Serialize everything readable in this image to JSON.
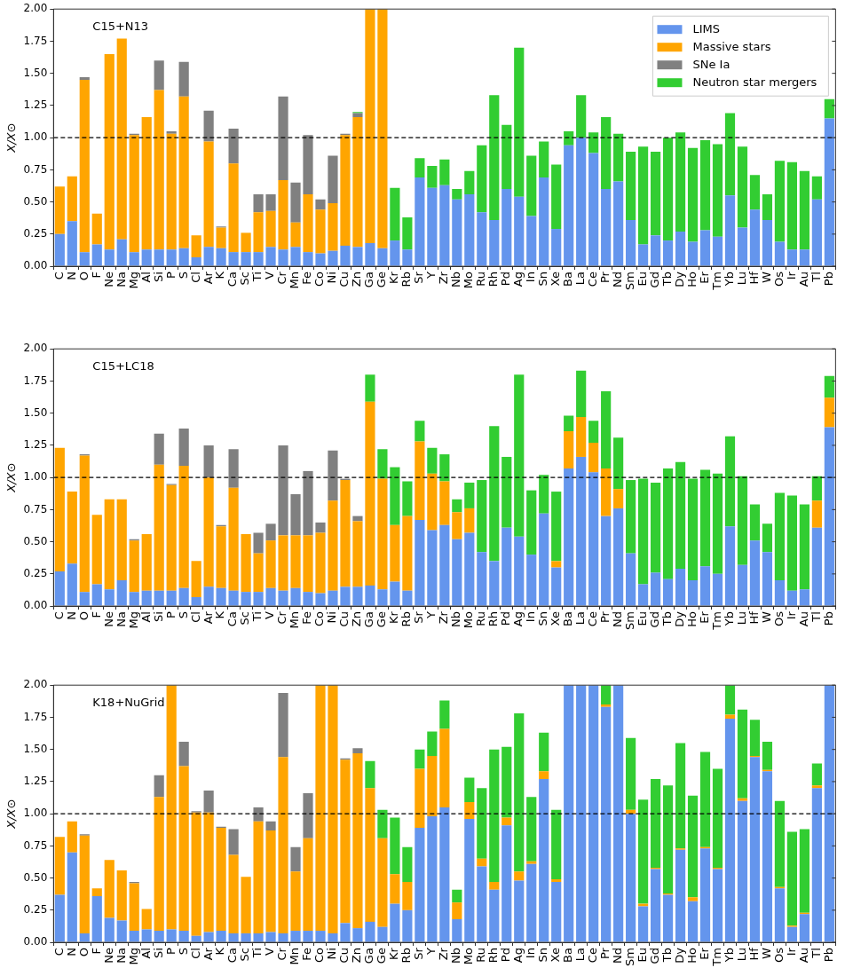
{
  "chart_data": [
    {
      "type": "bar",
      "stacked": true,
      "title": "C15+N13",
      "ylabel": "X/X⊙",
      "legend": "top right",
      "grid": false,
      "categories": [
        "C",
        "N",
        "O",
        "F",
        "Ne",
        "Na",
        "Mg",
        "Al",
        "Si",
        "P",
        "S",
        "Cl",
        "Ar",
        "K",
        "Ca",
        "Sc",
        "Ti",
        "V",
        "Cr",
        "Mn",
        "Fe",
        "Co",
        "Ni",
        "Cu",
        "Zn",
        "Ga",
        "Ge",
        "Kr",
        "Rb",
        "Sr",
        "Y",
        "Zr",
        "Nb",
        "Mo",
        "Ru",
        "Rh",
        "Pd",
        "Ag",
        "In",
        "Sn",
        "Xe",
        "Ba",
        "La",
        "Ce",
        "Pr",
        "Nd",
        "Sm",
        "Eu",
        "Gd",
        "Tb",
        "Dy",
        "Ho",
        "Er",
        "Tm",
        "Yb",
        "Lu",
        "Hf",
        "W",
        "Os",
        "Ir",
        "Au",
        "Tl",
        "Pb"
      ],
      "ylim": [
        0,
        2
      ],
      "yticks": [
        {
          "value": 0,
          "label": "0.00"
        },
        {
          "value": 0.25,
          "label": "0.25"
        },
        {
          "value": 0.5,
          "label": "0.50"
        },
        {
          "value": 0.75,
          "label": "0.75"
        },
        {
          "value": 1,
          "label": "1.00"
        },
        {
          "value": 1.25,
          "label": "1.25"
        },
        {
          "value": 1.5,
          "label": "1.50"
        },
        {
          "value": 1.75,
          "label": "1.75"
        },
        {
          "value": 2,
          "label": "2.00"
        }
      ],
      "ref_lines": [
        {
          "axis": "y",
          "value": 1,
          "line_style": "dashed",
          "color": "#000000"
        }
      ],
      "series": [
        {
          "name": "LIMS",
          "color": "#6495ed",
          "values": [
            0.25,
            0.35,
            0.11,
            0.17,
            0.13,
            0.21,
            0.11,
            0.13,
            0.13,
            0.13,
            0.14,
            0.07,
            0.15,
            0.14,
            0.11,
            0.11,
            0.11,
            0.15,
            0.13,
            0.15,
            0.11,
            0.1,
            0.12,
            0.16,
            0.15,
            0.18,
            0.14,
            0.2,
            0.13,
            0.69,
            0.61,
            0.63,
            0.52,
            0.56,
            0.42,
            0.36,
            0.6,
            0.54,
            0.39,
            0.69,
            0.29,
            0.94,
            1.0,
            0.88,
            0.6,
            0.66,
            0.36,
            0.17,
            0.24,
            0.2,
            0.27,
            0.19,
            0.28,
            0.23,
            0.55,
            0.3,
            0.44,
            0.36,
            0.19,
            0.13,
            0.13,
            0.52,
            1.15
          ]
        },
        {
          "name": "Massive stars",
          "color": "#ffa500",
          "values": [
            0.37,
            0.35,
            1.34,
            0.24,
            1.52,
            1.56,
            0.91,
            1.03,
            1.24,
            0.9,
            1.18,
            0.17,
            0.82,
            0.16,
            0.69,
            0.15,
            0.31,
            0.28,
            0.54,
            0.19,
            0.45,
            0.34,
            0.37,
            0.86,
            1.01,
            1.82,
            1.86,
            0,
            0,
            0,
            0,
            0,
            0,
            0,
            0,
            0,
            0,
            0,
            0,
            0,
            0,
            0,
            0,
            0,
            0,
            0,
            0,
            0,
            0,
            0,
            0,
            0,
            0,
            0,
            0,
            0,
            0,
            0,
            0,
            0,
            0,
            0,
            0
          ]
        },
        {
          "name": "SNe Ia",
          "color": "#808080",
          "values": [
            0,
            0,
            0.02,
            0,
            0,
            0,
            0.01,
            0,
            0.23,
            0.02,
            0.27,
            0,
            0.24,
            0.01,
            0.27,
            0,
            0.14,
            0.13,
            0.65,
            0.31,
            0.46,
            0.08,
            0.37,
            0.01,
            0.03,
            0,
            0,
            0,
            0,
            0,
            0,
            0,
            0,
            0,
            0,
            0,
            0,
            0,
            0,
            0,
            0,
            0,
            0,
            0,
            0,
            0,
            0,
            0,
            0,
            0,
            0,
            0,
            0,
            0,
            0,
            0,
            0,
            0,
            0,
            0,
            0,
            0,
            0
          ]
        },
        {
          "name": "Neutron star mergers",
          "color": "#32cd32",
          "values": [
            0,
            0,
            0,
            0,
            0,
            0,
            0,
            0,
            0,
            0,
            0,
            0,
            0,
            0,
            0,
            0,
            0,
            0,
            0,
            0,
            0,
            0,
            0,
            0,
            0.01,
            0,
            0,
            0.41,
            0.25,
            0.15,
            0.17,
            0.2,
            0.08,
            0.18,
            0.52,
            0.97,
            0.5,
            1.16,
            0.47,
            0.28,
            0.5,
            0.11,
            0.33,
            0.16,
            0.56,
            0.37,
            0.53,
            0.76,
            0.65,
            0.8,
            0.77,
            0.73,
            0.7,
            0.72,
            0.64,
            0.63,
            0.27,
            0.2,
            0.63,
            0.68,
            0.61,
            0.18,
            0.15
          ]
        }
      ]
    },
    {
      "type": "bar",
      "stacked": true,
      "title": "C15+LC18",
      "ylabel": "X/X⊙",
      "grid": false,
      "categories": [
        "C",
        "N",
        "O",
        "F",
        "Ne",
        "Na",
        "Mg",
        "Al",
        "Si",
        "P",
        "S",
        "Cl",
        "Ar",
        "K",
        "Ca",
        "Sc",
        "Ti",
        "V",
        "Cr",
        "Mn",
        "Fe",
        "Co",
        "Ni",
        "Cu",
        "Zn",
        "Ga",
        "Ge",
        "Kr",
        "Rb",
        "Sr",
        "Y",
        "Zr",
        "Nb",
        "Mo",
        "Ru",
        "Rh",
        "Pd",
        "Ag",
        "In",
        "Sn",
        "Xe",
        "Ba",
        "La",
        "Ce",
        "Pr",
        "Nd",
        "Sm",
        "Eu",
        "Gd",
        "Tb",
        "Dy",
        "Ho",
        "Er",
        "Tm",
        "Yb",
        "Lu",
        "Hf",
        "W",
        "Os",
        "Ir",
        "Au",
        "Tl",
        "Pb"
      ],
      "ylim": [
        0,
        2
      ],
      "yticks": [
        {
          "value": 0,
          "label": "0.00"
        },
        {
          "value": 0.25,
          "label": "0.25"
        },
        {
          "value": 0.5,
          "label": "0.50"
        },
        {
          "value": 0.75,
          "label": "0.75"
        },
        {
          "value": 1,
          "label": "1.00"
        },
        {
          "value": 1.25,
          "label": "1.25"
        },
        {
          "value": 1.5,
          "label": "1.50"
        },
        {
          "value": 1.75,
          "label": "1.75"
        },
        {
          "value": 2,
          "label": "2.00"
        }
      ],
      "ref_lines": [
        {
          "axis": "y",
          "value": 1,
          "line_style": "dashed",
          "color": "#000000"
        }
      ],
      "series": [
        {
          "color": "#6495ed",
          "values": [
            0.27,
            0.33,
            0.11,
            0.17,
            0.13,
            0.2,
            0.11,
            0.12,
            0.12,
            0.12,
            0.14,
            0.07,
            0.15,
            0.14,
            0.12,
            0.11,
            0.11,
            0.14,
            0.12,
            0.14,
            0.11,
            0.1,
            0.12,
            0.15,
            0.15,
            0.16,
            0.13,
            0.19,
            0.12,
            0.67,
            0.59,
            0.63,
            0.52,
            0.57,
            0.42,
            0.35,
            0.61,
            0.54,
            0.4,
            0.72,
            0.3,
            1.07,
            1.16,
            1.04,
            0.7,
            0.76,
            0.41,
            0.17,
            0.26,
            0.21,
            0.29,
            0.2,
            0.31,
            0.25,
            0.62,
            0.32,
            0.51,
            0.42,
            0.2,
            0.12,
            0.13,
            0.61,
            1.39
          ]
        },
        {
          "color": "#ffa500",
          "values": [
            0.96,
            0.56,
            1.06,
            0.54,
            0.7,
            0.63,
            0.4,
            0.44,
            0.98,
            0.82,
            0.95,
            0.28,
            0.85,
            0.48,
            0.8,
            0.45,
            0.3,
            0.37,
            0.43,
            0.41,
            0.44,
            0.47,
            0.7,
            0.83,
            0.51,
            1.43,
            0.86,
            0.44,
            0.58,
            0.61,
            0.44,
            0.34,
            0.21,
            0.19,
            0,
            0,
            0,
            0,
            0,
            0,
            0.05,
            0.29,
            0.31,
            0.23,
            0.37,
            0.15,
            0,
            0,
            0,
            0,
            0,
            0,
            0,
            0,
            0,
            0,
            0,
            0,
            0,
            0,
            0,
            0.21,
            0.23
          ]
        },
        {
          "color": "#808080",
          "values": [
            0,
            0,
            0.01,
            0,
            0,
            0,
            0.01,
            0,
            0.24,
            0.01,
            0.29,
            0,
            0.25,
            0.01,
            0.3,
            0,
            0.16,
            0.13,
            0.7,
            0.32,
            0.5,
            0.08,
            0.39,
            0.01,
            0.04,
            0,
            0,
            0,
            0,
            0,
            0,
            0,
            0,
            0,
            0,
            0,
            0,
            0,
            0,
            0,
            0,
            0,
            0,
            0,
            0,
            0,
            0,
            0,
            0,
            0,
            0,
            0,
            0,
            0,
            0,
            0,
            0,
            0,
            0,
            0,
            0,
            0,
            0
          ]
        },
        {
          "color": "#32cd32",
          "values": [
            0,
            0,
            0,
            0,
            0,
            0,
            0,
            0,
            0,
            0,
            0,
            0,
            0,
            0,
            0,
            0,
            0,
            0,
            0,
            0,
            0,
            0,
            0,
            0,
            0,
            0.21,
            0.23,
            0.45,
            0.27,
            0.16,
            0.2,
            0.21,
            0.1,
            0.2,
            0.56,
            1.05,
            0.55,
            1.26,
            0.5,
            0.3,
            0.54,
            0.12,
            0.36,
            0.17,
            0.6,
            0.4,
            0.57,
            0.82,
            0.7,
            0.86,
            0.83,
            0.79,
            0.75,
            0.78,
            0.7,
            0.69,
            0.28,
            0.22,
            0.68,
            0.74,
            0.66,
            0.19,
            0.17
          ]
        }
      ]
    },
    {
      "type": "bar",
      "stacked": true,
      "title": "K18+NuGrid",
      "ylabel": "X/X⊙",
      "grid": false,
      "categories": [
        "C",
        "N",
        "O",
        "F",
        "Ne",
        "Na",
        "Mg",
        "Al",
        "Si",
        "P",
        "S",
        "Cl",
        "Ar",
        "K",
        "Ca",
        "Sc",
        "Ti",
        "V",
        "Cr",
        "Mn",
        "Fe",
        "Co",
        "Ni",
        "Cu",
        "Zn",
        "Ga",
        "Ge",
        "Kr",
        "Rb",
        "Sr",
        "Y",
        "Zr",
        "Nb",
        "Mo",
        "Ru",
        "Rh",
        "Pd",
        "Ag",
        "In",
        "Sn",
        "Xe",
        "Ba",
        "La",
        "Ce",
        "Pr",
        "Nd",
        "Sm",
        "Eu",
        "Gd",
        "Tb",
        "Dy",
        "Ho",
        "Er",
        "Tm",
        "Yb",
        "Lu",
        "Hf",
        "W",
        "Os",
        "Ir",
        "Au",
        "Tl",
        "Pb"
      ],
      "ylim": [
        0,
        2
      ],
      "yticks": [
        {
          "value": 0,
          "label": "0.00"
        },
        {
          "value": 0.25,
          "label": "0.25"
        },
        {
          "value": 0.5,
          "label": "0.50"
        },
        {
          "value": 0.75,
          "label": "0.75"
        },
        {
          "value": 1,
          "label": "1.00"
        },
        {
          "value": 1.25,
          "label": "1.25"
        },
        {
          "value": 1.5,
          "label": "1.50"
        },
        {
          "value": 1.75,
          "label": "1.75"
        },
        {
          "value": 2,
          "label": "2.00"
        }
      ],
      "ref_lines": [
        {
          "axis": "y",
          "value": 1,
          "line_style": "dashed",
          "color": "#000000"
        }
      ],
      "series": [
        {
          "color": "#6495ed",
          "values": [
            0.37,
            0.7,
            0.07,
            0.36,
            0.19,
            0.17,
            0.09,
            0.1,
            0.09,
            0.1,
            0.09,
            0.05,
            0.08,
            0.09,
            0.07,
            0.07,
            0.07,
            0.08,
            0.07,
            0.09,
            0.09,
            0.09,
            0.07,
            0.15,
            0.11,
            0.16,
            0.12,
            0.3,
            0.25,
            0.89,
            0.98,
            1.05,
            0.18,
            0.96,
            0.59,
            0.41,
            0.91,
            0.48,
            0.61,
            1.27,
            0.47,
            2,
            2,
            2,
            1.83,
            2,
            1.0,
            0.28,
            0.57,
            0.37,
            0.72,
            0.32,
            0.73,
            0.57,
            1.74,
            1.1,
            1.44,
            1.33,
            0.42,
            0.12,
            0.22,
            1.2,
            2
          ]
        },
        {
          "color": "#ffa500",
          "values": [
            0.45,
            0.24,
            0.76,
            0.06,
            0.45,
            0.39,
            0.37,
            0.16,
            1.04,
            1.9,
            1.28,
            0.96,
            0.93,
            0.8,
            0.61,
            0.44,
            0.87,
            0.79,
            1.37,
            0.46,
            0.72,
            1.91,
            1.93,
            1.27,
            1.36,
            1.04,
            0.69,
            0.23,
            0.22,
            0.46,
            0.47,
            0.61,
            0.13,
            0.13,
            0.06,
            0.06,
            0.06,
            0.07,
            0.02,
            0.06,
            0.02,
            0,
            0,
            0,
            0.02,
            0,
            0.03,
            0.02,
            0.01,
            0.01,
            0.01,
            0.03,
            0.01,
            0.01,
            0.03,
            0.02,
            0.01,
            0.01,
            0.01,
            0.01,
            0.01,
            0.02,
            0
          ]
        },
        {
          "color": "#808080",
          "values": [
            0,
            0,
            0.01,
            0,
            0,
            0,
            0.01,
            0,
            0.17,
            0,
            0.19,
            0.01,
            0.17,
            0.01,
            0.2,
            0,
            0.11,
            0.07,
            0.5,
            0.19,
            0.35,
            0,
            0,
            0.01,
            0.04,
            0,
            0,
            0,
            0,
            0,
            0,
            0,
            0,
            0,
            0,
            0,
            0,
            0,
            0,
            0,
            0,
            0,
            0,
            0,
            0,
            0,
            0,
            0,
            0,
            0,
            0,
            0,
            0,
            0,
            0,
            0,
            0,
            0,
            0,
            0,
            0,
            0,
            0
          ]
        },
        {
          "color": "#32cd32",
          "values": [
            0,
            0,
            0,
            0,
            0,
            0,
            0,
            0,
            0,
            0,
            0,
            0,
            0,
            0,
            0,
            0,
            0,
            0,
            0,
            0,
            0,
            0,
            0,
            0,
            0,
            0.21,
            0.22,
            0.44,
            0.27,
            0.15,
            0.19,
            0.22,
            0.1,
            0.19,
            0.55,
            1.03,
            0.55,
            1.23,
            0.5,
            0.3,
            0.54,
            0,
            0,
            0,
            0.15,
            0,
            0.56,
            0.81,
            0.69,
            0.84,
            0.82,
            0.79,
            0.74,
            0.77,
            0.23,
            0.69,
            0.28,
            0.22,
            0.67,
            0.73,
            0.65,
            0.17,
            0
          ]
        }
      ]
    }
  ]
}
